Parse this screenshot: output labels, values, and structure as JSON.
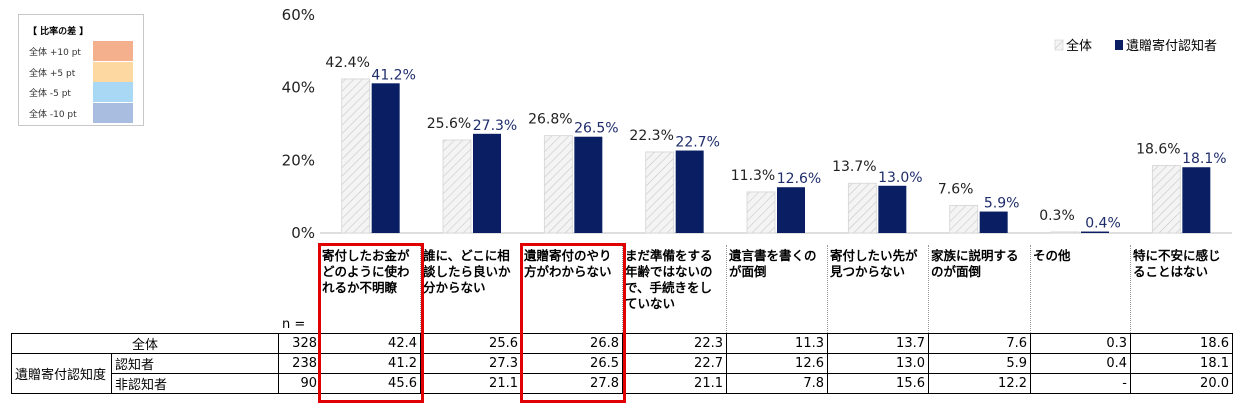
{
  "diff_legend": {
    "title": "【 比率の差 】",
    "items": [
      {
        "label": "全体 +10 pt",
        "color": "#f4b08c"
      },
      {
        "label": "全体 +5 pt",
        "color": "#fdd8a0"
      },
      {
        "label": "全体 -5 pt",
        "color": "#a8d8f4"
      },
      {
        "label": "全体 -10 pt",
        "color": "#a9bde0"
      }
    ]
  },
  "chart_data": {
    "type": "bar",
    "ylim": [
      0,
      60
    ],
    "yticks": [
      "0%",
      "20%",
      "40%",
      "60%"
    ],
    "ytick_values": [
      0,
      20,
      40,
      60
    ],
    "grid": false,
    "legend_position": "top-right",
    "categories": [
      "寄付したお金がどのように使われるか不明瞭",
      "誰に、どこに相談したら良いか分からない",
      "遺贈寄付のやり方がわからない",
      "まだ準備をする年齢ではないので、手続きをしていない",
      "遺言書を書くのが面倒",
      "寄付したい先が見つからない",
      "家族に説明するのが面倒",
      "その他",
      "特に不安に感じることはない"
    ],
    "series": [
      {
        "name": "全体",
        "color": "#ececec",
        "hatch": true,
        "values": [
          42.4,
          25.6,
          26.8,
          22.3,
          11.3,
          13.7,
          7.6,
          0.3,
          18.6
        ],
        "labels": [
          "42.4%",
          "25.6%",
          "26.8%",
          "22.3%",
          "11.3%",
          "13.7%",
          "7.6%",
          "0.3%",
          "18.6%"
        ]
      },
      {
        "name": "遺贈寄付認知者",
        "color": "#0a1f63",
        "hatch": false,
        "values": [
          41.2,
          27.3,
          26.5,
          22.7,
          12.6,
          13.0,
          5.9,
          0.4,
          18.1
        ],
        "labels": [
          "41.2%",
          "27.3%",
          "26.5%",
          "22.7%",
          "12.6%",
          "13.0%",
          "5.9%",
          "0.4%",
          "18.1%"
        ]
      }
    ]
  },
  "table": {
    "n_label": "n =",
    "group_label": "遺贈寄付認知度",
    "rows": [
      {
        "label": "全体",
        "n": "328",
        "values": [
          "42.4",
          "25.6",
          "26.8",
          "22.3",
          "11.3",
          "13.7",
          "7.6",
          "0.3",
          "18.6"
        ]
      },
      {
        "label": "認知者",
        "n": "238",
        "values": [
          "41.2",
          "27.3",
          "26.5",
          "22.7",
          "12.6",
          "13.0",
          "5.9",
          "0.4",
          "18.1"
        ]
      },
      {
        "label": "非認知者",
        "n": "90",
        "values": [
          "45.6",
          "21.1",
          "27.8",
          "21.1",
          "7.8",
          "15.6",
          "12.2",
          "-",
          "20.0"
        ]
      }
    ]
  }
}
